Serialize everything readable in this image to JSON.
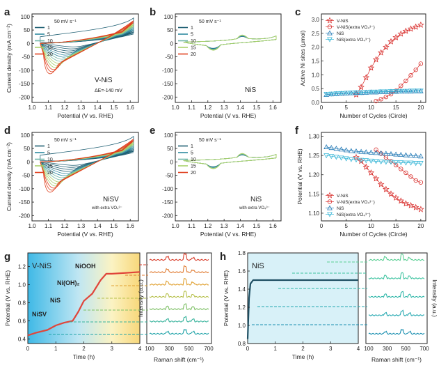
{
  "figure": {
    "panel_letters": [
      "a",
      "b",
      "c",
      "d",
      "e",
      "f",
      "g",
      "h"
    ],
    "colors": {
      "c1": "#1f5f73",
      "c5": "#2f8aa0",
      "c10": "#6fb6a8",
      "c15": "#a8d06a",
      "c20": "#e0401e",
      "red": "#d9302e",
      "cyan": "#33b5d6",
      "blue": "#1f77b4",
      "teal": "#2aa3a8"
    }
  },
  "chart_data": [
    {
      "panel": "a",
      "type": "line",
      "title": "",
      "xlabel": "Potential (V vs. RHE)",
      "ylabel": "Current density (mA cm⁻²)",
      "xlim": [
        1.0,
        1.65
      ],
      "ylim": [
        -220,
        110
      ],
      "xticks": [
        "1.0",
        "1.1",
        "1.2",
        "1.3",
        "1.4",
        "1.5",
        "1.6"
      ],
      "yticks": [
        "100",
        "50",
        "0",
        "-50",
        "-100",
        "-150",
        "-200"
      ],
      "legend": {
        "title": "50 mV s⁻¹",
        "entries": [
          "1",
          "5",
          "10",
          "15",
          "20"
        ]
      },
      "annotations": {
        "label": "V-NiS",
        "delta": "ΔE=-140 mV"
      },
      "series": [
        {
          "name": "1",
          "peak_x": 1.25,
          "peak_y": -20,
          "end_y": 40
        },
        {
          "name": "5",
          "peak_x": 1.22,
          "peak_y": -55,
          "end_y": 55
        },
        {
          "name": "10",
          "peak_x": 1.18,
          "peak_y": -85,
          "end_y": 70
        },
        {
          "name": "15",
          "peak_x": 1.14,
          "peak_y": -110,
          "end_y": 80
        },
        {
          "name": "20",
          "peak_x": 1.11,
          "peak_y": -130,
          "end_y": 85
        }
      ]
    },
    {
      "panel": "b",
      "type": "line",
      "xlabel": "Potential (V vs. RHE)",
      "ylabel": "",
      "xlim": [
        1.0,
        1.65
      ],
      "ylim": [
        -220,
        110
      ],
      "xticks": [
        "1.0",
        "1.1",
        "1.2",
        "1.3",
        "1.4",
        "1.5",
        "1.6"
      ],
      "yticks": [
        "100",
        "50",
        "0",
        "-50",
        "-100",
        "-150",
        "-200"
      ],
      "legend": {
        "title": "50 mV s⁻¹",
        "entries": [
          "1",
          "5",
          "10",
          "15",
          "20"
        ]
      },
      "annotations": {
        "label": "NiS"
      },
      "series": [
        {
          "name": "1"
        },
        {
          "name": "5"
        },
        {
          "name": "10"
        },
        {
          "name": "15"
        },
        {
          "name": "20"
        }
      ]
    },
    {
      "panel": "c",
      "type": "scatter",
      "xlabel": "Number of Cycles (Circle)",
      "ylabel": "Active Ni sites (μmol)",
      "xlim": [
        0,
        21
      ],
      "ylim": [
        0,
        3.2
      ],
      "xticks": [
        "0",
        "5",
        "10",
        "15",
        "20"
      ],
      "yticks": [
        "0.0",
        "0.5",
        "1.0",
        "1.5",
        "2.0",
        "2.5",
        "3.0"
      ],
      "legend": [
        "V-NiS",
        "V-NiS(extra VO₄³⁻)",
        "NiS",
        "NiS(extra VO₄³⁻)"
      ],
      "series": [
        {
          "name": "V-NiS",
          "x": [
            7,
            8,
            9,
            10,
            11,
            12,
            13,
            14,
            15,
            16,
            17,
            18,
            19,
            20
          ],
          "y": [
            0.28,
            0.55,
            0.9,
            1.25,
            1.55,
            1.8,
            2.0,
            2.2,
            2.35,
            2.48,
            2.58,
            2.66,
            2.73,
            2.8
          ]
        },
        {
          "name": "V-NiS(extra VO4)",
          "x": [
            11,
            12,
            13,
            14,
            15,
            16,
            17,
            18,
            19,
            20
          ],
          "y": [
            0.05,
            0.12,
            0.2,
            0.3,
            0.42,
            0.6,
            0.78,
            0.98,
            1.18,
            1.4
          ]
        },
        {
          "name": "NiS",
          "x": [
            1,
            2,
            3,
            4,
            5,
            6,
            7,
            8,
            9,
            10,
            11,
            12,
            13,
            14,
            15,
            16,
            17,
            18,
            19,
            20
          ],
          "y": [
            0.28,
            0.3,
            0.31,
            0.32,
            0.33,
            0.34,
            0.35,
            0.35,
            0.36,
            0.37,
            0.37,
            0.38,
            0.38,
            0.39,
            0.39,
            0.4,
            0.4,
            0.4,
            0.41,
            0.41
          ]
        },
        {
          "name": "NiS(extra VO4)",
          "x": [
            1,
            2,
            3,
            4,
            5,
            6,
            7,
            8,
            9,
            10,
            11,
            12,
            13,
            14,
            15,
            16,
            17,
            18,
            19,
            20
          ],
          "y": [
            0.3,
            0.31,
            0.32,
            0.33,
            0.34,
            0.35,
            0.36,
            0.36,
            0.37,
            0.38,
            0.38,
            0.39,
            0.39,
            0.4,
            0.4,
            0.41,
            0.41,
            0.42,
            0.42,
            0.42
          ]
        }
      ]
    },
    {
      "panel": "d",
      "type": "line",
      "xlabel": "Potential (V vs. RHE)",
      "ylabel": "Current density (mA cm⁻²)",
      "xlim": [
        1.0,
        1.65
      ],
      "ylim": [
        -220,
        110
      ],
      "xticks": [
        "1.0",
        "1.1",
        "1.2",
        "1.3",
        "1.4",
        "1.5",
        "1.6"
      ],
      "yticks": [
        "100",
        "50",
        "0",
        "-50",
        "-100",
        "-150",
        "-200"
      ],
      "legend": {
        "title": "50 mV s⁻¹",
        "entries": [
          "1",
          "5",
          "10",
          "15",
          "20"
        ]
      },
      "annotations": {
        "label": "NiSV",
        "sublabel": "with extra VO₄³⁻"
      },
      "series": [
        {
          "name": "1",
          "peak_x": 1.25,
          "peak_y": -20,
          "end_y": 40
        },
        {
          "name": "5",
          "peak_x": 1.22,
          "peak_y": -55,
          "end_y": 55
        },
        {
          "name": "10",
          "peak_x": 1.18,
          "peak_y": -85,
          "end_y": 70
        },
        {
          "name": "15",
          "peak_x": 1.14,
          "peak_y": -110,
          "end_y": 80
        },
        {
          "name": "20",
          "peak_x": 1.11,
          "peak_y": -130,
          "end_y": 85
        }
      ]
    },
    {
      "panel": "e",
      "type": "line",
      "xlabel": "Potential (V vs. RHE)",
      "ylabel": "",
      "xlim": [
        1.0,
        1.65
      ],
      "ylim": [
        -220,
        110
      ],
      "xticks": [
        "1.0",
        "1.1",
        "1.2",
        "1.3",
        "1.4",
        "1.5",
        "1.6"
      ],
      "yticks": [
        "100",
        "50",
        "0",
        "-50",
        "-100",
        "-150",
        "-200"
      ],
      "legend": {
        "title": "50 mV s⁻¹",
        "entries": [
          "1",
          "5",
          "10",
          "15",
          "20"
        ]
      },
      "annotations": {
        "label": "NiS",
        "sublabel": "with extra VO₄³⁻"
      },
      "series": [
        {
          "name": "1"
        },
        {
          "name": "5"
        },
        {
          "name": "10"
        },
        {
          "name": "15"
        },
        {
          "name": "20"
        }
      ]
    },
    {
      "panel": "f",
      "type": "scatter",
      "xlabel": "Number of Cycles (Circle)",
      "ylabel": "Potential (V vs. RHE)",
      "xlim": [
        0,
        21
      ],
      "ylim": [
        1.08,
        1.31
      ],
      "xticks": [
        "0",
        "5",
        "10",
        "15",
        "20"
      ],
      "yticks": [
        "1.10",
        "1.15",
        "1.20",
        "1.25",
        "1.30"
      ],
      "legend": [
        "V-NiS",
        "V-NiS(extra VO₄³⁻)",
        "NiS",
        "NiS(extra VO₄³⁻)"
      ],
      "series": [
        {
          "name": "V-NiS",
          "x": [
            7,
            8,
            9,
            10,
            11,
            12,
            13,
            14,
            15,
            16,
            17,
            18,
            19,
            20
          ],
          "y": [
            1.245,
            1.235,
            1.22,
            1.205,
            1.19,
            1.175,
            1.162,
            1.15,
            1.14,
            1.132,
            1.125,
            1.12,
            1.115,
            1.11
          ]
        },
        {
          "name": "V-NiS(extra VO4)",
          "x": [
            11,
            12,
            13,
            14,
            15,
            16,
            17,
            18,
            19,
            20
          ],
          "y": [
            1.265,
            1.255,
            1.245,
            1.235,
            1.225,
            1.215,
            1.205,
            1.195,
            1.185,
            1.18
          ]
        },
        {
          "name": "NiS",
          "x": [
            1,
            2,
            3,
            4,
            5,
            6,
            7,
            8,
            9,
            10,
            11,
            12,
            13,
            14,
            15,
            16,
            17,
            18,
            19,
            20
          ],
          "y": [
            1.272,
            1.27,
            1.268,
            1.266,
            1.264,
            1.262,
            1.261,
            1.26,
            1.259,
            1.258,
            1.257,
            1.256,
            1.255,
            1.254,
            1.253,
            1.252,
            1.251,
            1.25,
            1.249,
            1.248
          ]
        },
        {
          "name": "NiS(extra VO4)",
          "x": [
            1,
            2,
            3,
            4,
            5,
            6,
            7,
            8,
            9,
            10,
            11,
            12,
            13,
            14,
            15,
            16,
            17,
            18,
            19,
            20
          ],
          "y": [
            1.25,
            1.248,
            1.246,
            1.244,
            1.242,
            1.24,
            1.239,
            1.238,
            1.237,
            1.236,
            1.235,
            1.234,
            1.233,
            1.233,
            1.232,
            1.232,
            1.231,
            1.231,
            1.23,
            1.23
          ]
        }
      ]
    },
    {
      "panel": "g",
      "type": "line",
      "xlabel": "Time (h)",
      "ylabel": "Potential (V vs. RHE)",
      "xlim": [
        0,
        4
      ],
      "ylim": [
        0.35,
        1.35
      ],
      "xticks": [
        "0",
        "1",
        "2",
        "3",
        "4"
      ],
      "yticks": [
        "0.4",
        "0.6",
        "0.8",
        "1.0",
        "1.2"
      ],
      "annotations": {
        "title": "V-NiS",
        "labels": [
          "NiSV",
          "NiS",
          "Ni(OH)₂",
          "NiOOH"
        ]
      },
      "series": [
        {
          "name": "potential",
          "x": [
            0,
            0.3,
            0.7,
            1.0,
            1.3,
            1.6,
            1.8,
            2.0,
            2.3,
            2.6,
            2.8,
            3.0,
            3.5,
            4.0
          ],
          "y": [
            0.44,
            0.47,
            0.5,
            0.55,
            0.58,
            0.6,
            0.7,
            0.82,
            0.9,
            1.05,
            1.12,
            1.12,
            1.13,
            1.14
          ]
        }
      ],
      "raman": {
        "xlabel": "Raman shift (cm⁻¹)",
        "ylabel": "Intensity (a.u.)",
        "xticks": [
          "100",
          "300",
          "500",
          "700"
        ],
        "traces": 7
      }
    },
    {
      "panel": "h",
      "type": "line",
      "xlabel": "Time (h)",
      "ylabel": "Potential (V vs. RHE)",
      "xlim": [
        0,
        4
      ],
      "ylim": [
        0.8,
        1.8
      ],
      "xticks": [
        "0",
        "1",
        "2",
        "3",
        "4"
      ],
      "yticks": [
        "0.8",
        "1.0",
        "1.2",
        "1.4",
        "1.6",
        "1.8"
      ],
      "annotations": {
        "title": "NiS"
      },
      "series": [
        {
          "name": "potential",
          "x": [
            0,
            0.05,
            0.1,
            0.2,
            0.5,
            1,
            2,
            3,
            4
          ],
          "y": [
            0.85,
            1.3,
            1.46,
            1.5,
            1.5,
            1.5,
            1.5,
            1.5,
            1.5
          ]
        }
      ],
      "raman": {
        "xlabel": "Raman shift (cm⁻¹)",
        "ylabel": "Intensity (a.u.)",
        "xticks": [
          "100",
          "300",
          "500",
          "700"
        ],
        "traces": 5
      }
    }
  ]
}
